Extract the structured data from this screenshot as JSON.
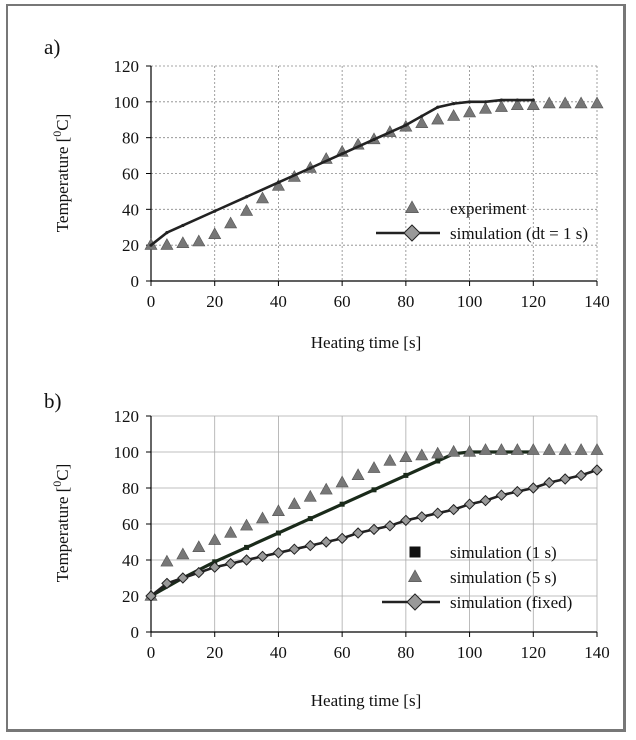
{
  "chart_data": [
    {
      "panel_label": "a)",
      "type": "line",
      "xlabel": "Heating time [s]",
      "ylabel": "Temperature [",
      "ylabel_sup": "0",
      "ylabel_unit": "C]",
      "xlim": [
        0,
        140
      ],
      "ylim": [
        0,
        120
      ],
      "xticks": [
        0,
        20,
        40,
        60,
        80,
        100,
        120,
        140
      ],
      "yticks": [
        0,
        20,
        40,
        60,
        80,
        100,
        120
      ],
      "grid": "dotted",
      "legend_position": "right-middle",
      "series": [
        {
          "name": "experiment",
          "marker": "triangle",
          "x": [
            0,
            5,
            10,
            15,
            20,
            25,
            30,
            35,
            40,
            45,
            50,
            55,
            60,
            65,
            70,
            75,
            80,
            85,
            90,
            95,
            100,
            105,
            110,
            115,
            120,
            125,
            130,
            135,
            140
          ],
          "y": [
            20,
            20,
            21,
            22,
            26,
            32,
            39,
            46,
            53,
            58,
            63,
            68,
            72,
            76,
            79,
            83,
            86,
            88,
            90,
            92,
            94,
            96,
            97,
            98,
            98,
            99,
            99,
            99,
            99
          ]
        },
        {
          "name": "simulation (dt = 1 s)",
          "marker": "diamond-line",
          "x": [
            0,
            5,
            10,
            20,
            30,
            40,
            50,
            60,
            70,
            80,
            85,
            90,
            95,
            100,
            105,
            110,
            115,
            120
          ],
          "y": [
            20,
            27,
            31,
            39,
            47,
            55,
            63,
            71,
            79,
            87,
            92,
            97,
            99,
            100,
            100,
            101,
            101,
            101
          ]
        }
      ]
    },
    {
      "panel_label": "b)",
      "type": "line",
      "xlabel": "Heating time [s]",
      "ylabel": "Temperature [",
      "ylabel_sup": "0",
      "ylabel_unit": "C]",
      "xlim": [
        0,
        140
      ],
      "ylim": [
        0,
        120
      ],
      "xticks": [
        0,
        20,
        40,
        60,
        80,
        100,
        120,
        140
      ],
      "yticks": [
        0,
        20,
        40,
        60,
        80,
        100,
        120
      ],
      "grid": "solid",
      "legend_position": "bottom-right",
      "series": [
        {
          "name": "simulation (1 s)",
          "marker": "square",
          "x": [
            0,
            10,
            20,
            30,
            40,
            50,
            60,
            70,
            80,
            90,
            95,
            100,
            110,
            120
          ],
          "y": [
            20,
            30,
            39,
            47,
            55,
            63,
            71,
            79,
            87,
            95,
            99,
            100,
            100,
            100
          ]
        },
        {
          "name": "simulation (5 s)",
          "marker": "triangle",
          "x": [
            0,
            5,
            10,
            15,
            20,
            25,
            30,
            35,
            40,
            45,
            50,
            55,
            60,
            65,
            70,
            75,
            80,
            85,
            90,
            95,
            100,
            105,
            110,
            115,
            120,
            125,
            130,
            135,
            140
          ],
          "y": [
            20,
            39,
            43,
            47,
            51,
            55,
            59,
            63,
            67,
            71,
            75,
            79,
            83,
            87,
            91,
            95,
            97,
            98,
            99,
            100,
            100,
            101,
            101,
            101,
            101,
            101,
            101,
            101,
            101
          ]
        },
        {
          "name": "simulation (fixed)",
          "marker": "diamond-line",
          "x": [
            0,
            5,
            10,
            15,
            20,
            25,
            30,
            35,
            40,
            45,
            50,
            55,
            60,
            65,
            70,
            75,
            80,
            85,
            90,
            95,
            100,
            105,
            110,
            115,
            120,
            125,
            130,
            135,
            140
          ],
          "y": [
            20,
            27,
            30,
            33,
            36,
            38,
            40,
            42,
            44,
            46,
            48,
            50,
            52,
            55,
            57,
            59,
            62,
            64,
            66,
            68,
            71,
            73,
            76,
            78,
            80,
            83,
            85,
            87,
            90
          ]
        }
      ]
    }
  ]
}
